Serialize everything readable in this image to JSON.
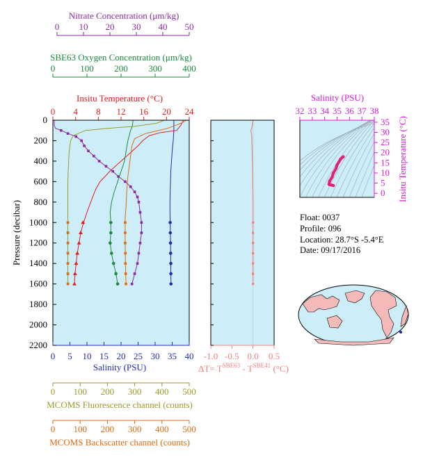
{
  "colors": {
    "nitrate": "#8b2a9e",
    "oxygen": "#1a8a3a",
    "temperature": "#e41a1c",
    "salinity": "#1f2ab8",
    "fluorescence": "#9a9a2a",
    "backscatter": "#e06a10",
    "delta": "#f08080",
    "plot_bg": "#cdeef8",
    "ts_panel": "#d81ad8"
  },
  "axes": {
    "nitrate": {
      "label": "Nitrate Concentration (μm/kg)",
      "ticks": [
        "0",
        "10",
        "20",
        "30",
        "40",
        "50"
      ],
      "range": [
        0,
        50
      ]
    },
    "oxygen": {
      "label": "SBE63 Oxygen Concentration (μm/kg)",
      "ticks": [
        "0",
        "100",
        "200",
        "300",
        "400"
      ],
      "range": [
        0,
        400
      ]
    },
    "temperature": {
      "label": "Insitu Temperature (°C)",
      "ticks": [
        "0",
        "4",
        "8",
        "12",
        "16",
        "20",
        "24"
      ],
      "range": [
        0,
        24
      ]
    },
    "pressure": {
      "label": "Pressure (decibar)",
      "ticks": [
        "0",
        "200",
        "400",
        "600",
        "800",
        "1000",
        "1200",
        "1400",
        "1600",
        "1800",
        "2000",
        "2200"
      ],
      "range": [
        0,
        2200
      ]
    },
    "salinity": {
      "label": "Salinity (PSU)",
      "ticks": [
        "0",
        "5",
        "10",
        "15",
        "20",
        "25",
        "30",
        "35",
        "40"
      ],
      "range": [
        0,
        40
      ]
    },
    "fluorescence": {
      "label": "MCOMS Fluorescence channel (counts)",
      "ticks": [
        "0",
        "100",
        "200",
        "300",
        "400",
        "500"
      ],
      "range": [
        0,
        500
      ]
    },
    "backscatter": {
      "label": "MCOMS Backscatter channel (counts)",
      "ticks": [
        "0",
        "100",
        "200",
        "300",
        "400",
        "500"
      ],
      "range": [
        0,
        500
      ]
    },
    "delta": {
      "ticks": [
        "-1.0",
        "-0.5",
        "0.0",
        "0.5"
      ],
      "range": [
        -1.0,
        0.5
      ],
      "label_prefix": "ΔT= T",
      "label_sup1": "SBE63",
      "label_mid": " - T",
      "label_sup2": "SBE41",
      "label_suffix": " (°C)"
    },
    "ts_salinity": {
      "label": "Salinity (PSU)",
      "ticks": [
        "32",
        "33",
        "34",
        "35",
        "36",
        "37",
        "38"
      ],
      "range": [
        32,
        38
      ]
    },
    "ts_temperature": {
      "label": "Insitu Temperature (°C)",
      "ticks": [
        "0",
        "5",
        "10",
        "15",
        "20",
        "25",
        "30",
        "35"
      ],
      "range": [
        -2,
        36
      ]
    }
  },
  "info": {
    "float": "Float:  0037",
    "profile": "Profile:  096",
    "location": "Location:  28.7°S  -5.4°E",
    "date": "Date:  09/17/2016"
  },
  "chart_data": [
    {
      "type": "line",
      "name": "Insitu Temperature",
      "x_unit": "°C",
      "y_unit": "decibar",
      "points": [
        [
          23.0,
          0
        ],
        [
          22.5,
          50
        ],
        [
          21.8,
          100
        ],
        [
          19.0,
          120
        ],
        [
          17.0,
          150
        ],
        [
          15.8,
          200
        ],
        [
          15.0,
          250
        ],
        [
          14.0,
          300
        ],
        [
          13.0,
          350
        ],
        [
          12.0,
          400
        ],
        [
          11.0,
          450
        ],
        [
          10.0,
          500
        ],
        [
          9.0,
          560
        ],
        [
          8.3,
          600
        ],
        [
          7.5,
          680
        ],
        [
          6.8,
          780
        ],
        [
          6.0,
          900
        ],
        [
          5.4,
          1000
        ],
        [
          4.9,
          1100
        ],
        [
          4.6,
          1200
        ],
        [
          4.3,
          1300
        ],
        [
          4.1,
          1400
        ],
        [
          3.9,
          1500
        ],
        [
          3.8,
          1600
        ]
      ],
      "markers": [
        [
          5.3,
          1000
        ],
        [
          4.9,
          1100
        ],
        [
          4.6,
          1200
        ],
        [
          4.3,
          1300
        ],
        [
          4.1,
          1400
        ],
        [
          3.9,
          1500
        ],
        [
          3.8,
          1600
        ]
      ]
    },
    {
      "type": "line",
      "name": "Salinity",
      "x_unit": "PSU",
      "y_unit": "decibar",
      "points": [
        [
          35.5,
          0
        ],
        [
          35.5,
          100
        ],
        [
          35.3,
          200
        ],
        [
          35.0,
          300
        ],
        [
          34.8,
          400
        ],
        [
          34.6,
          500
        ],
        [
          34.5,
          600
        ],
        [
          34.4,
          700
        ],
        [
          34.35,
          800
        ],
        [
          34.35,
          900
        ],
        [
          34.4,
          1000
        ],
        [
          34.45,
          1100
        ],
        [
          34.5,
          1200
        ],
        [
          34.55,
          1300
        ],
        [
          34.6,
          1400
        ],
        [
          34.62,
          1500
        ],
        [
          34.65,
          1600
        ]
      ],
      "markers": [
        [
          34.4,
          1000
        ],
        [
          34.45,
          1100
        ],
        [
          34.5,
          1200
        ],
        [
          34.55,
          1300
        ],
        [
          34.6,
          1400
        ],
        [
          34.62,
          1500
        ],
        [
          34.65,
          1600
        ]
      ]
    },
    {
      "type": "line",
      "name": "Nitrate Concentration",
      "x_unit": "μm/kg",
      "y_unit": "decibar",
      "points": [
        [
          0.5,
          0
        ],
        [
          0.5,
          50
        ],
        [
          1.0,
          80
        ],
        [
          3.0,
          100
        ],
        [
          5.5,
          130
        ],
        [
          8.5,
          160
        ],
        [
          10.5,
          200
        ],
        [
          11.5,
          250
        ],
        [
          13.0,
          300
        ],
        [
          15.0,
          350
        ],
        [
          17.0,
          400
        ],
        [
          19.5,
          450
        ],
        [
          22.0,
          500
        ],
        [
          24.0,
          550
        ],
        [
          26.5,
          600
        ],
        [
          28.5,
          650
        ],
        [
          30.0,
          700
        ],
        [
          31.0,
          750
        ],
        [
          31.5,
          800
        ],
        [
          32.0,
          900
        ],
        [
          32.5,
          1000
        ],
        [
          32.5,
          1100
        ],
        [
          32.0,
          1200
        ],
        [
          31.5,
          1300
        ],
        [
          31.0,
          1400
        ],
        [
          30.0,
          1500
        ],
        [
          29.0,
          1600
        ]
      ],
      "markers": [
        [
          3.0,
          100
        ],
        [
          5.5,
          130
        ],
        [
          8.5,
          160
        ],
        [
          10.5,
          200
        ],
        [
          11.5,
          250
        ],
        [
          13.0,
          300
        ],
        [
          15.0,
          350
        ],
        [
          17.0,
          400
        ],
        [
          19.5,
          450
        ],
        [
          22.0,
          500
        ],
        [
          24.0,
          550
        ],
        [
          26.5,
          600
        ],
        [
          28.5,
          650
        ],
        [
          30.0,
          700
        ],
        [
          31.0,
          750
        ],
        [
          31.5,
          800
        ],
        [
          32.0,
          900
        ],
        [
          32.5,
          1000
        ],
        [
          32.5,
          1100
        ],
        [
          32.0,
          1200
        ],
        [
          31.5,
          1300
        ],
        [
          31.0,
          1400
        ],
        [
          30.0,
          1500
        ],
        [
          29.0,
          1600
        ]
      ]
    },
    {
      "type": "line",
      "name": "SBE63 Oxygen Concentration",
      "x_unit": "μm/kg",
      "y_unit": "decibar",
      "points": [
        [
          235,
          0
        ],
        [
          233,
          60
        ],
        [
          228,
          100
        ],
        [
          220,
          200
        ],
        [
          215,
          300
        ],
        [
          210,
          400
        ],
        [
          200,
          500
        ],
        [
          190,
          600
        ],
        [
          180,
          700
        ],
        [
          172,
          800
        ],
        [
          168,
          900
        ],
        [
          170,
          1000
        ],
        [
          170,
          1100
        ],
        [
          168,
          1200
        ],
        [
          172,
          1300
        ],
        [
          178,
          1400
        ],
        [
          185,
          1500
        ],
        [
          190,
          1600
        ]
      ],
      "markers": [
        [
          170,
          1000
        ],
        [
          170,
          1100
        ],
        [
          168,
          1200
        ],
        [
          172,
          1300
        ],
        [
          178,
          1400
        ],
        [
          185,
          1500
        ],
        [
          190,
          1600
        ]
      ]
    },
    {
      "type": "line",
      "name": "MCOMS Fluorescence channel",
      "x_unit": "counts",
      "y_unit": "decibar",
      "points": [
        [
          410,
          0
        ],
        [
          380,
          30
        ],
        [
          300,
          60
        ],
        [
          200,
          80
        ],
        [
          120,
          100
        ],
        [
          75,
          150
        ],
        [
          65,
          200
        ],
        [
          60,
          300
        ],
        [
          58,
          400
        ],
        [
          56,
          500
        ],
        [
          55,
          600
        ],
        [
          55,
          800
        ],
        [
          55,
          1000
        ],
        [
          55,
          1200
        ],
        [
          55,
          1400
        ],
        [
          55,
          1600
        ]
      ],
      "markers": [
        [
          55,
          1000
        ],
        [
          55,
          1100
        ],
        [
          55,
          1200
        ],
        [
          55,
          1300
        ],
        [
          55,
          1400
        ],
        [
          55,
          1500
        ],
        [
          55,
          1600
        ]
      ]
    },
    {
      "type": "line",
      "name": "MCOMS Backscatter channel",
      "x_unit": "counts",
      "y_unit": "decibar",
      "points": [
        [
          490,
          0
        ],
        [
          470,
          30
        ],
        [
          420,
          80
        ],
        [
          340,
          130
        ],
        [
          300,
          180
        ],
        [
          290,
          250
        ],
        [
          285,
          350
        ],
        [
          280,
          450
        ],
        [
          275,
          550
        ],
        [
          272,
          650
        ],
        [
          270,
          750
        ],
        [
          268,
          850
        ],
        [
          265,
          950
        ],
        [
          265,
          1050
        ],
        [
          265,
          1200
        ],
        [
          266,
          1400
        ],
        [
          268,
          1600
        ]
      ],
      "markers": [
        [
          55,
          1000
        ],
        [
          55,
          1100
        ],
        [
          55,
          1200
        ],
        [
          55,
          1300
        ],
        [
          55,
          1400
        ],
        [
          55,
          1500
        ],
        [
          55,
          1600
        ],
        [
          265,
          1000
        ],
        [
          265,
          1100
        ],
        [
          265,
          1200
        ],
        [
          266,
          1300
        ],
        [
          266,
          1400
        ],
        [
          267,
          1500
        ],
        [
          268,
          1600
        ]
      ]
    },
    {
      "type": "line",
      "name": "ΔT",
      "x_unit": "°C",
      "y_unit": "decibar",
      "points": [
        [
          0.0,
          0
        ],
        [
          -0.02,
          60
        ],
        [
          -0.05,
          100
        ],
        [
          -0.03,
          150
        ],
        [
          -0.02,
          300
        ],
        [
          -0.01,
          500
        ],
        [
          0.0,
          800
        ],
        [
          0.0,
          1000
        ],
        [
          0.0,
          1200
        ],
        [
          0.0,
          1400
        ],
        [
          0.0,
          1600
        ]
      ],
      "markers": [
        [
          0.0,
          1000
        ],
        [
          0.0,
          1100
        ],
        [
          0.0,
          1200
        ],
        [
          0.0,
          1300
        ],
        [
          0.0,
          1400
        ],
        [
          0.0,
          1500
        ],
        [
          0.0,
          1600
        ]
      ]
    },
    {
      "type": "scatter",
      "name": "T-S diagram",
      "x_unit": "PSU",
      "y_unit": "°C",
      "points": [
        [
          35.5,
          18
        ],
        [
          35.3,
          17
        ],
        [
          35.2,
          16
        ],
        [
          35.0,
          14
        ],
        [
          34.9,
          12
        ],
        [
          34.7,
          10
        ],
        [
          34.6,
          8
        ],
        [
          34.4,
          6
        ],
        [
          34.35,
          4.5
        ],
        [
          34.4,
          4.2
        ],
        [
          34.6,
          4.0
        ],
        [
          34.7,
          3.8
        ]
      ]
    }
  ]
}
